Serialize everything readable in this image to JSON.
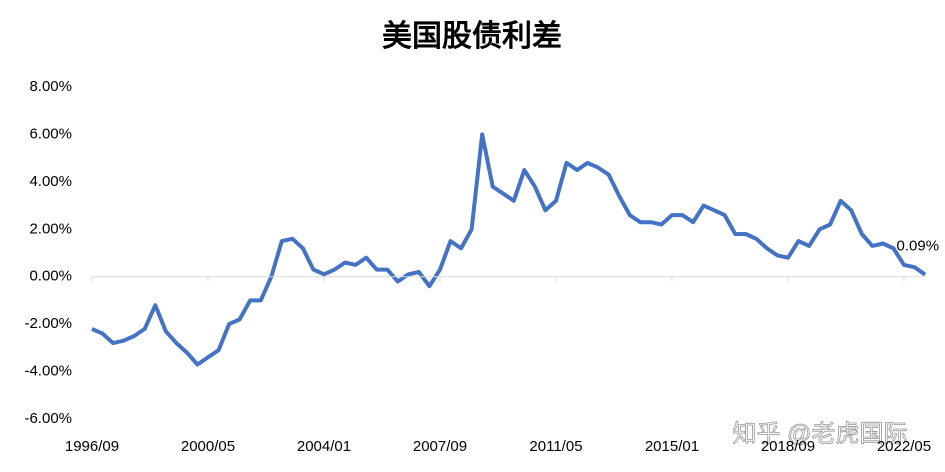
{
  "chart_data": {
    "type": "line",
    "title": "美国股债利差",
    "categories": [
      "1996/09",
      null,
      null,
      null,
      null,
      null,
      null,
      null,
      null,
      null,
      null,
      "2000/05",
      null,
      null,
      null,
      null,
      null,
      null,
      null,
      null,
      null,
      null,
      "2004/01",
      null,
      null,
      null,
      null,
      null,
      null,
      null,
      null,
      null,
      null,
      "2007/09",
      null,
      null,
      null,
      null,
      null,
      null,
      null,
      null,
      null,
      null,
      "2011/05",
      null,
      null,
      null,
      null,
      null,
      null,
      null,
      null,
      null,
      null,
      "2015/01",
      null,
      null,
      null,
      null,
      null,
      null,
      null,
      null,
      null,
      null,
      "2018/09",
      null,
      null,
      null,
      null,
      null,
      null,
      null,
      null,
      null,
      null,
      "2022/05",
      null,
      null
    ],
    "series": [
      {
        "name": "美国股债利差",
        "color": "#4472c4",
        "values": [
          -2.2,
          -2.4,
          -2.8,
          -2.7,
          -2.5,
          -2.2,
          -1.2,
          -2.3,
          -2.8,
          -3.2,
          -3.7,
          -3.4,
          -3.1,
          -2.0,
          -1.8,
          -1.0,
          -1.0,
          0.0,
          1.5,
          1.6,
          1.2,
          0.3,
          0.1,
          0.3,
          0.6,
          0.5,
          0.8,
          0.3,
          0.3,
          -0.2,
          0.1,
          0.2,
          -0.4,
          0.3,
          1.5,
          1.2,
          2.0,
          6.0,
          3.8,
          3.5,
          3.2,
          4.5,
          3.8,
          2.8,
          3.2,
          4.8,
          4.5,
          4.8,
          4.6,
          4.3,
          3.4,
          2.6,
          2.3,
          2.3,
          2.2,
          2.6,
          2.6,
          2.3,
          3.0,
          2.8,
          2.6,
          1.8,
          1.8,
          1.6,
          1.2,
          0.9,
          0.8,
          1.5,
          1.3,
          2.0,
          2.2,
          3.2,
          2.8,
          1.8,
          1.3,
          1.4,
          1.2,
          0.5,
          0.4,
          0.09
        ],
        "value_labels": [
          null,
          null,
          null,
          null,
          null,
          null,
          null,
          null,
          null,
          null,
          null,
          null,
          null,
          null,
          null,
          null,
          null,
          null,
          null,
          null,
          null,
          null,
          null,
          null,
          null,
          null,
          null,
          null,
          null,
          null,
          null,
          null,
          null,
          null,
          null,
          null,
          null,
          null,
          null,
          null,
          null,
          null,
          null,
          null,
          null,
          null,
          null,
          null,
          null,
          null,
          null,
          null,
          null,
          null,
          null,
          null,
          null,
          null,
          null,
          null,
          null,
          null,
          null,
          null,
          null,
          null,
          null,
          null,
          null,
          null,
          null,
          null,
          null,
          null,
          null,
          null,
          null,
          null,
          null,
          "0.09%"
        ]
      }
    ],
    "ylim": [
      -6,
      8
    ],
    "yticks": [
      {
        "value": -6,
        "label": "-6.00%"
      },
      {
        "value": -4,
        "label": "-4.00%"
      },
      {
        "value": -2,
        "label": "-2.00%"
      },
      {
        "value": 0,
        "label": "0.00%"
      },
      {
        "value": 2,
        "label": "2.00%"
      },
      {
        "value": 4,
        "label": "4.00%"
      },
      {
        "value": 6,
        "label": "6.00%"
      },
      {
        "value": 8,
        "label": "8.00%"
      }
    ],
    "watermark": "知乎 @老虎国际"
  }
}
